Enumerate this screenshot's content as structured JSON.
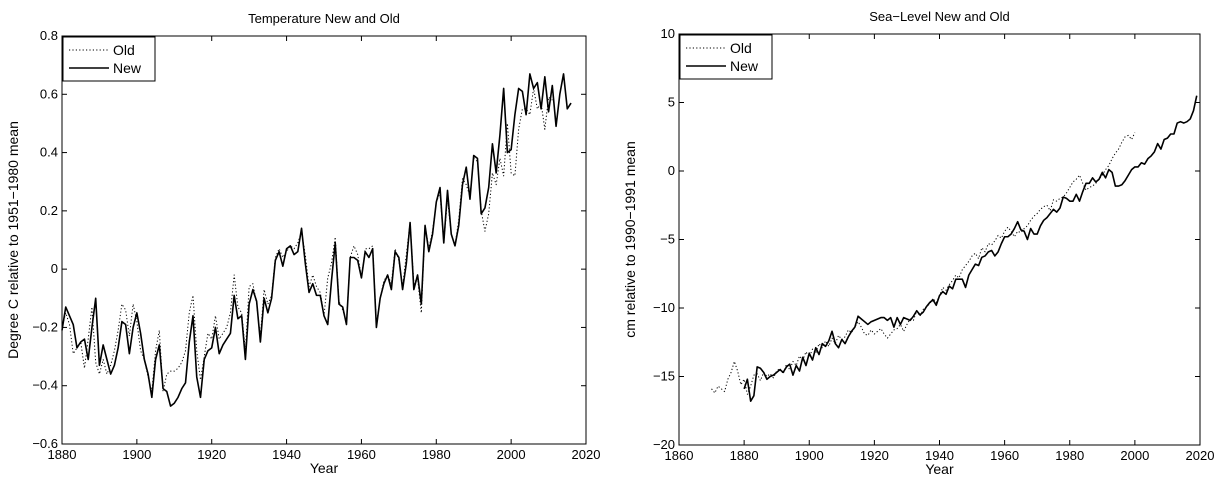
{
  "chart_data": [
    {
      "type": "line",
      "title": "Temperature New and Old",
      "xlabel": "Year",
      "ylabel": "Degree C relative to 1951−1980 mean",
      "xlim": [
        1880,
        2020
      ],
      "ylim": [
        -0.6,
        0.8
      ],
      "xticks": [
        "1880",
        "1900",
        "1920",
        "1940",
        "1960",
        "1980",
        "2000",
        "2020"
      ],
      "yticks": [
        "−0.6",
        "−0.4",
        "−0.2",
        "0",
        "0.2",
        "0.4",
        "0.6",
        "0.8"
      ],
      "xtick_values": [
        1880,
        1900,
        1920,
        1940,
        1960,
        1980,
        2000,
        2020
      ],
      "ytick_values": [
        -0.6,
        -0.4,
        -0.2,
        0,
        0.2,
        0.4,
        0.6,
        0.8
      ],
      "grid": false,
      "legend": "top-left",
      "series": [
        {
          "name": "Old",
          "style": "dotted",
          "x_start": 1880,
          "values": [
            -0.2,
            -0.15,
            -0.19,
            -0.29,
            -0.27,
            -0.25,
            -0.34,
            -0.24,
            -0.13,
            -0.32,
            -0.36,
            -0.31,
            -0.36,
            -0.33,
            -0.28,
            -0.21,
            -0.12,
            -0.14,
            -0.23,
            -0.12,
            -0.18,
            -0.28,
            -0.31,
            -0.37,
            -0.42,
            -0.28,
            -0.21,
            -0.42,
            -0.36,
            -0.35,
            -0.35,
            -0.34,
            -0.32,
            -0.28,
            -0.15,
            -0.09,
            -0.28,
            -0.38,
            -0.3,
            -0.22,
            -0.24,
            -0.16,
            -0.24,
            -0.22,
            -0.2,
            -0.15,
            -0.02,
            -0.13,
            -0.15,
            -0.28,
            -0.06,
            -0.05,
            -0.12,
            -0.23,
            -0.07,
            -0.12,
            -0.09,
            0.04,
            0.07,
            0.04,
            0.06,
            0.08,
            0.07,
            0.09,
            0.13,
            0.05,
            -0.06,
            -0.02,
            -0.06,
            -0.08,
            -0.16,
            -0.03,
            0.02,
            0.11,
            -0.11,
            -0.14,
            -0.18,
            0.04,
            0.08,
            0.05,
            -0.03,
            0.07,
            0.07,
            0.08,
            -0.19,
            -0.1,
            -0.04,
            -0.02,
            -0.05,
            0.07,
            0.03,
            -0.06,
            0.05,
            0.16,
            -0.05,
            -0.03,
            -0.15,
            0.15,
            0.07,
            0.13,
            0.23,
            0.26,
            0.09,
            0.24,
            0.12,
            0.08,
            0.17,
            0.31,
            0.29,
            0.25,
            0.38,
            0.37,
            0.2,
            0.13,
            0.19,
            0.33,
            0.29,
            0.38,
            0.32,
            0.5,
            0.33,
            0.32,
            0.48,
            0.55,
            0.55,
            0.53,
            0.62,
            0.55,
            0.57,
            0.48,
            0.59,
            0.58
          ]
        },
        {
          "name": "New",
          "style": "solid",
          "x_start": 1880,
          "values": [
            -0.21,
            -0.13,
            -0.16,
            -0.19,
            -0.27,
            -0.25,
            -0.24,
            -0.31,
            -0.2,
            -0.1,
            -0.33,
            -0.26,
            -0.31,
            -0.36,
            -0.33,
            -0.27,
            -0.18,
            -0.19,
            -0.29,
            -0.2,
            -0.15,
            -0.22,
            -0.31,
            -0.36,
            -0.44,
            -0.31,
            -0.26,
            -0.41,
            -0.42,
            -0.47,
            -0.46,
            -0.44,
            -0.41,
            -0.39,
            -0.25,
            -0.16,
            -0.37,
            -0.44,
            -0.31,
            -0.28,
            -0.27,
            -0.2,
            -0.29,
            -0.26,
            -0.24,
            -0.22,
            -0.09,
            -0.17,
            -0.16,
            -0.31,
            -0.12,
            -0.07,
            -0.11,
            -0.25,
            -0.1,
            -0.15,
            -0.1,
            0.03,
            0.06,
            0.01,
            0.07,
            0.08,
            0.05,
            0.06,
            0.14,
            0.02,
            -0.08,
            -0.05,
            -0.09,
            -0.09,
            -0.16,
            -0.19,
            -0.04,
            0.09,
            -0.12,
            -0.13,
            -0.19,
            0.04,
            0.04,
            0.03,
            -0.03,
            0.06,
            0.04,
            0.07,
            -0.2,
            -0.1,
            -0.05,
            -0.02,
            -0.07,
            0.06,
            0.04,
            -0.07,
            0.02,
            0.16,
            -0.07,
            -0.02,
            -0.12,
            0.15,
            0.06,
            0.12,
            0.23,
            0.28,
            0.09,
            0.27,
            0.12,
            0.08,
            0.15,
            0.29,
            0.35,
            0.24,
            0.39,
            0.38,
            0.19,
            0.21,
            0.28,
            0.43,
            0.33,
            0.46,
            0.62,
            0.4,
            0.41,
            0.53,
            0.62,
            0.61,
            0.53,
            0.67,
            0.62,
            0.64,
            0.55,
            0.66,
            0.54,
            0.63,
            0.49,
            0.6,
            0.67,
            0.55,
            0.57
          ]
        }
      ]
    },
    {
      "type": "line",
      "title": "Sea−Level New and Old",
      "xlabel": "Year",
      "ylabel": "cm relative to 1990−1991 mean",
      "xlim": [
        1860,
        2020
      ],
      "ylim": [
        -20,
        10
      ],
      "xticks": [
        "1860",
        "1880",
        "1900",
        "1920",
        "1940",
        "1960",
        "1980",
        "2000",
        "2020"
      ],
      "yticks": [
        "−20",
        "−15",
        "−10",
        "−5",
        "0",
        "5",
        "10"
      ],
      "xtick_values": [
        1860,
        1880,
        1900,
        1920,
        1940,
        1960,
        1980,
        2000,
        2020
      ],
      "ytick_values": [
        -20,
        -15,
        -10,
        -5,
        0,
        5,
        10
      ],
      "grid": false,
      "legend": "top-left",
      "series": [
        {
          "name": "Old",
          "style": "dotted",
          "x_start": 1870,
          "values": [
            -15.9,
            -16.2,
            -15.7,
            -15.9,
            -16.1,
            -15.2,
            -14.7,
            -13.9,
            -14.6,
            -15.6,
            -15.2,
            -16.3,
            -15.7,
            -14.9,
            -14.8,
            -15.3,
            -14.7,
            -15.0,
            -14.8,
            -15.1,
            -14.6,
            -14.4,
            -14.8,
            -14.1,
            -14.5,
            -13.9,
            -14.2,
            -13.5,
            -13.8,
            -13.2,
            -13.6,
            -13.0,
            -13.3,
            -12.6,
            -12.9,
            -12.4,
            -12.8,
            -12.2,
            -12.6,
            -12.0,
            -12.3,
            -12.1,
            -11.6,
            -11.8,
            -11.4,
            -11.0,
            -11.4,
            -11.9,
            -12.0,
            -11.6,
            -11.9,
            -11.7,
            -11.5,
            -11.9,
            -12.2,
            -11.9,
            -11.6,
            -11.5,
            -11.2,
            -11.7,
            -11.2,
            -10.8,
            -10.9,
            -10.2,
            -10.6,
            -10.1,
            -9.9,
            -9.7,
            -9.3,
            -9.6,
            -9.1,
            -8.5,
            -8.7,
            -8.3,
            -8.0,
            -7.6,
            -7.8,
            -7.2,
            -6.9,
            -6.6,
            -6.2,
            -6.0,
            -6.4,
            -5.6,
            -5.9,
            -5.3,
            -5.4,
            -5.1,
            -4.7,
            -4.9,
            -4.4,
            -4.1,
            -4.4,
            -4.8,
            -4.4,
            -4.5,
            -4.2,
            -4.0,
            -3.6,
            -3.3,
            -3.1,
            -2.8,
            -2.6,
            -2.5,
            -2.9,
            -2.1,
            -2.2,
            -2.0,
            -1.9,
            -1.6,
            -1.2,
            -0.8,
            -0.6,
            -0.3,
            -0.9,
            -1.4,
            -1.2,
            -1.1,
            -0.9,
            -0.6,
            -0.3,
            0.1,
            0.4,
            0.9,
            1.3,
            1.6,
            2.1,
            2.5,
            2.6,
            2.3,
            2.8
          ]
        },
        {
          "name": "New",
          "style": "solid",
          "x_start": 1880,
          "values": [
            -15.9,
            -15.2,
            -16.8,
            -16.4,
            -14.3,
            -14.4,
            -14.7,
            -15.2,
            -15.0,
            -14.9,
            -14.7,
            -14.5,
            -14.7,
            -14.3,
            -14.1,
            -14.9,
            -14.2,
            -14.6,
            -13.6,
            -14.2,
            -13.3,
            -13.8,
            -12.9,
            -13.4,
            -12.6,
            -12.8,
            -12.4,
            -11.7,
            -12.6,
            -12.9,
            -12.3,
            -12.6,
            -12.1,
            -11.7,
            -11.4,
            -10.6,
            -10.8,
            -11.0,
            -11.2,
            -11.0,
            -10.9,
            -10.8,
            -10.7,
            -10.7,
            -10.9,
            -10.7,
            -11.4,
            -10.7,
            -11.2,
            -10.7,
            -10.8,
            -10.9,
            -10.6,
            -10.2,
            -10.5,
            -10.3,
            -9.9,
            -9.6,
            -9.4,
            -9.8,
            -9.1,
            -8.8,
            -9.0,
            -8.4,
            -8.6,
            -7.9,
            -7.9,
            -7.9,
            -8.5,
            -7.6,
            -7.2,
            -6.8,
            -6.9,
            -6.3,
            -6.2,
            -5.9,
            -5.8,
            -6.2,
            -5.9,
            -5.3,
            -4.8,
            -4.8,
            -4.6,
            -4.2,
            -3.7,
            -4.3,
            -4.4,
            -5.0,
            -4.2,
            -4.6,
            -4.6,
            -4.0,
            -3.6,
            -3.4,
            -3.1,
            -2.8,
            -3.0,
            -2.7,
            -1.9,
            -2.0,
            -2.2,
            -2.2,
            -1.7,
            -2.2,
            -1.5,
            -0.9,
            -0.9,
            -0.5,
            -0.8,
            -0.6,
            -0.1,
            -0.5,
            0.1,
            -0.1,
            -1.1,
            -1.1,
            -1.0,
            -0.7,
            -0.3,
            0.1,
            0.3,
            0.3,
            0.6,
            0.5,
            0.9,
            1.1,
            1.4,
            2.0,
            1.6,
            2.3,
            2.4,
            2.7,
            2.7,
            3.5,
            3.6,
            3.5,
            3.6,
            3.8,
            4.4,
            5.5
          ]
        }
      ]
    }
  ]
}
